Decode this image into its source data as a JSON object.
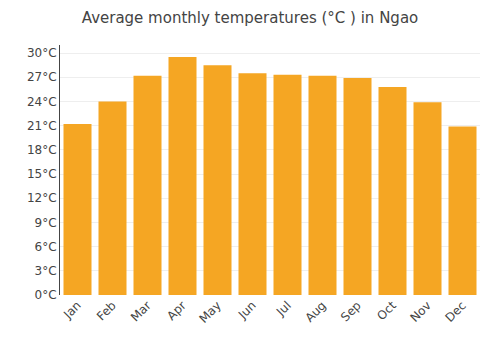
{
  "chart_data": {
    "type": "bar",
    "title": "Average monthly temperatures (°C ) in Ngao",
    "categories": [
      "Jan",
      "Feb",
      "Mar",
      "Apr",
      "May",
      "Jun",
      "Jul",
      "Aug",
      "Sep",
      "Oct",
      "Nov",
      "Dec"
    ],
    "values": [
      21.2,
      24.0,
      27.2,
      29.5,
      28.5,
      27.5,
      27.3,
      27.2,
      26.9,
      25.8,
      23.9,
      20.9
    ],
    "color": "#F5A623",
    "ylim": [
      0,
      31
    ],
    "yticks": [
      {
        "value": 0,
        "label": "0°C"
      },
      {
        "value": 3,
        "label": "3°C"
      },
      {
        "value": 6,
        "label": "6°C"
      },
      {
        "value": 9,
        "label": "9°C"
      },
      {
        "value": 12,
        "label": "12°C"
      },
      {
        "value": 15,
        "label": "15°C"
      },
      {
        "value": 18,
        "label": "18°C"
      },
      {
        "value": 21,
        "label": "21°C"
      },
      {
        "value": 24,
        "label": "24°C"
      },
      {
        "value": 27,
        "label": "27°C"
      },
      {
        "value": 30,
        "label": "30°C"
      }
    ],
    "grid": true
  }
}
